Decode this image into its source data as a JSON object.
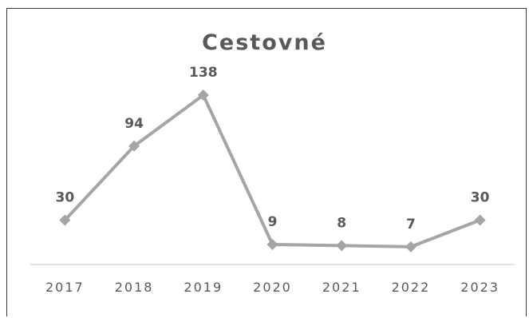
{
  "chart_data": {
    "type": "line",
    "title": "Cestovné",
    "categories": [
      "2017",
      "2018",
      "2019",
      "2020",
      "2021",
      "2022",
      "2023"
    ],
    "values": [
      30,
      94,
      138,
      9,
      8,
      7,
      30
    ],
    "data_labels": [
      "30",
      "94",
      "138",
      "9",
      "8",
      "7",
      "30"
    ],
    "xlabel": "",
    "ylabel": "",
    "ylim": [
      0,
      150
    ],
    "grid": false,
    "legend": "none",
    "colors": {
      "line": "#a5a5a5",
      "text": "#595959",
      "axis": "#d9d9d9"
    }
  }
}
